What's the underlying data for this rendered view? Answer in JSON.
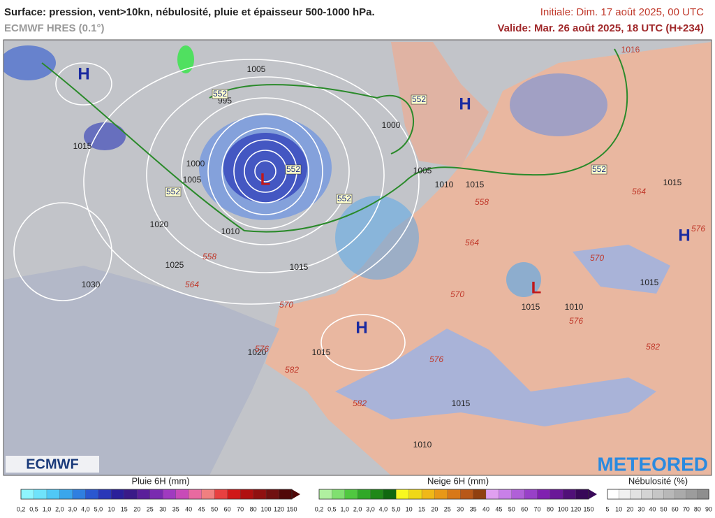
{
  "header": {
    "title": "Surface: pression, vent>10kn, nébulosité, pluie et épaisseur 500-1000 hPa.",
    "model": "ECMWF HRES (0.1°)",
    "initial": "Initiale: Dim. 17 août 2025, 00 UTC",
    "valid": "Valide: Mar. 26 août 2025, 18 UTC (H+234)"
  },
  "map": {
    "centers": [
      "H",
      "H",
      "H",
      "H",
      "L",
      "L"
    ],
    "isobars": [
      "1005",
      "995",
      "1000",
      "1005",
      "1015",
      "1020",
      "1025",
      "1030",
      "1010",
      "1015",
      "1000",
      "1005",
      "1010",
      "1015",
      "1015",
      "1015",
      "1020",
      "1015",
      "1010",
      "1015",
      "1010",
      "1015",
      "1016"
    ],
    "thickness": [
      "552",
      "552",
      "552",
      "552",
      "552",
      "552",
      "558",
      "564",
      "570",
      "558",
      "564",
      "570",
      "576",
      "576",
      "582",
      "582",
      "576",
      "564",
      "570",
      "576",
      "582"
    ]
  },
  "logos": {
    "left": "ECMWF",
    "right": "METEORED"
  },
  "legends": [
    {
      "title": "Pluie 6H (mm)",
      "labels": [
        "0,2",
        "0,5",
        "1,0",
        "2,0",
        "3,0",
        "4,0",
        "5,0",
        "10",
        "15",
        "20",
        "25",
        "30",
        "35",
        "40",
        "45",
        "50",
        "60",
        "70",
        "80",
        "100",
        "120",
        "150"
      ],
      "colors": [
        "#8ff5ff",
        "#6fe3fb",
        "#50c8f5",
        "#3aa6ec",
        "#2f7fe0",
        "#2a57d0",
        "#2a37b8",
        "#2a1f9a",
        "#3a1a88",
        "#5a1f9a",
        "#7a2ab0",
        "#a03ac0",
        "#c84ab8",
        "#e86aa0",
        "#f08080",
        "#e84040",
        "#d01818",
        "#b01010",
        "#901010",
        "#701010",
        "#500808"
      ]
    },
    {
      "title": "Neige 6H (mm)",
      "labels": [
        "0,2",
        "0,5",
        "1,0",
        "2,0",
        "3,0",
        "4,0",
        "5,0",
        "10",
        "15",
        "20",
        "25",
        "30",
        "35",
        "40",
        "45",
        "50",
        "60",
        "70",
        "80",
        "100",
        "120",
        "150"
      ],
      "colors": [
        "#b0f0a0",
        "#80e070",
        "#50c840",
        "#30a828",
        "#208818",
        "#106810",
        "#f8f820",
        "#f0d818",
        "#f0b818",
        "#e89818",
        "#d87818",
        "#b85818",
        "#904010",
        "#e0a0f0",
        "#c880e8",
        "#b060d8",
        "#9840c8",
        "#8020b0",
        "#6a1898",
        "#501078",
        "#380858"
      ]
    },
    {
      "title": "Nébulosité (%)",
      "labels": [
        "5",
        "10",
        "20",
        "30",
        "40",
        "50",
        "60",
        "70",
        "80",
        "90"
      ],
      "colors": [
        "#ffffff",
        "#f0f0f0",
        "#e2e2e2",
        "#d4d4d4",
        "#c6c6c6",
        "#b8b8b8",
        "#aaaaaa",
        "#9c9c9c",
        "#8e8e8e"
      ]
    }
  ]
}
